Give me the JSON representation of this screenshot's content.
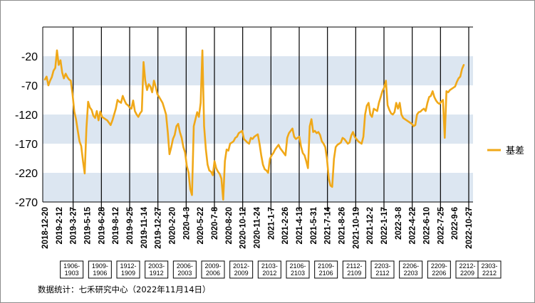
{
  "chart_data": {
    "type": "line",
    "title": "",
    "xlabel": "",
    "ylabel": "",
    "ylim": [
      -270,
      30
    ],
    "yticks": [
      -20,
      -70,
      -120,
      -170,
      -220,
      -270
    ],
    "grid": "horizontal bands",
    "legend_position": "right",
    "colors": {
      "series": "#F0A818",
      "band": "#DCE6F1",
      "vline": "#000000"
    },
    "x_ticks": [
      "2018-12-20",
      "2019-2-12",
      "2019-3-27",
      "2019-5-15",
      "2019-6-28",
      "2019-8-12",
      "2019-9-25",
      "2019-11-14",
      "2019-12-27",
      "2020-2-20",
      "2020-4-3",
      "2020-5-22",
      "2020-7-8",
      "2020-8-20",
      "2020-10-12",
      "2020-11-24",
      "2021-1-7",
      "2021-2-26",
      "2021-4-13",
      "2021-5-31",
      "2021-7-14",
      "2021-8-26",
      "2021-10-19",
      "2021-12-2",
      "2022-1-17",
      "2022-3-8",
      "2022-4-22",
      "2022-6-10",
      "2022-7-25",
      "2022-9-6",
      "2022-10-27"
    ],
    "series": [
      {
        "name": "基差",
        "y": [
          -60,
          -55,
          -70,
          -62,
          -56,
          -45,
          -40,
          -10,
          -35,
          -27,
          -48,
          -58,
          -50,
          -56,
          -60,
          -62,
          -86,
          -115,
          -128,
          -148,
          -166,
          -174,
          -200,
          -221,
          -144,
          -98,
          -108,
          -112,
          -122,
          -126,
          -114,
          -130,
          -115,
          -124,
          -126,
          -128,
          -130,
          -134,
          -138,
          -130,
          -120,
          -110,
          -95,
          -98,
          -100,
          -88,
          -96,
          -102,
          -104,
          -108,
          -110,
          -96,
          -114,
          -120,
          -124,
          -118,
          -114,
          -30,
          -62,
          -78,
          -68,
          -72,
          -82,
          -62,
          -72,
          -85,
          -90,
          -95,
          -100,
          -110,
          -120,
          -150,
          -188,
          -176,
          -162,
          -155,
          -140,
          -136,
          -150,
          -160,
          -176,
          -185,
          -208,
          -220,
          -248,
          -258,
          -140,
          -128,
          -116,
          -124,
          -100,
          -10,
          -140,
          -180,
          -206,
          -216,
          -218,
          -224,
          -200,
          -212,
          -218,
          -222,
          -230,
          -266,
          -200,
          -180,
          -182,
          -170,
          -168,
          -166,
          -160,
          -158,
          -152,
          -150,
          -148,
          -162,
          -165,
          -168,
          -170,
          -160,
          -162,
          -158,
          -156,
          -154,
          -170,
          -190,
          -206,
          -214,
          -216,
          -220,
          -196,
          -190,
          -186,
          -180,
          -176,
          -172,
          -178,
          -182,
          -186,
          -190,
          -160,
          -152,
          -148,
          -144,
          -158,
          -162,
          -160,
          -158,
          -175,
          -186,
          -190,
          -200,
          -212,
          -140,
          -128,
          -150,
          -148,
          -152,
          -150,
          -155,
          -166,
          -170,
          -176,
          -196,
          -230,
          -242,
          -244,
          -196,
          -176,
          -172,
          -170,
          -168,
          -160,
          -162,
          -166,
          -170,
          -168,
          -156,
          -150,
          -158,
          -162,
          -166,
          -168,
          -170,
          -158,
          -120,
          -105,
          -100,
          -120,
          -124,
          -110,
          -112,
          -114,
          -100,
          -90,
          -80,
          -74,
          -62,
          -104,
          -112,
          -118,
          -120,
          -116,
          -100,
          -110,
          -100,
          -120,
          -126,
          -128,
          -130,
          -132,
          -134,
          -136,
          -140,
          -138,
          -120,
          -116,
          -115,
          -112,
          -110,
          -114,
          -100,
          -90,
          -88,
          -80,
          -90,
          -96,
          -100,
          -102,
          -98,
          -95,
          -160,
          -80,
          -82,
          -78,
          -76,
          -74,
          -72,
          -64,
          -58,
          -55,
          -42,
          -35
        ]
      }
    ],
    "vlines": [
      {
        "tick_index": 2,
        "x": "2019-3-27",
        "box": [
          "1906-",
          "1903"
        ]
      },
      {
        "tick_index": 4,
        "x": "2019-6-28",
        "box": [
          "1909-",
          "1906"
        ]
      },
      {
        "tick_index": 6,
        "x": "2019-9-25",
        "box": [
          "1912-",
          "1909"
        ]
      },
      {
        "tick_index": 8,
        "x": "2019-12-27",
        "box": [
          "2003-",
          "1912"
        ]
      },
      {
        "tick_index": 10,
        "x": "2020-4-3",
        "box": [
          "2006-",
          "2003"
        ]
      },
      {
        "tick_index": 12,
        "x": "2020-7-8",
        "box": [
          "2009-",
          "2006"
        ]
      },
      {
        "tick_index": 14,
        "x": "2020-10-12",
        "box": [
          "2012-",
          "2009"
        ]
      },
      {
        "tick_index": 16,
        "x": "2021-1-7",
        "box": [
          "2103-",
          "2012"
        ]
      },
      {
        "tick_index": 18,
        "x": "2021-4-13",
        "box": [
          "2106-",
          "2103"
        ]
      },
      {
        "tick_index": 20,
        "x": "2021-7-14",
        "box": [
          "2109-",
          "2106"
        ]
      },
      {
        "tick_index": 22,
        "x": "2021-10-19",
        "box": [
          "2112-",
          "2109"
        ]
      },
      {
        "tick_index": 24,
        "x": "2022-1-17",
        "box": [
          "2203-",
          "2112"
        ]
      },
      {
        "tick_index": 26,
        "x": "2022-4-22",
        "box": [
          "2206-",
          "2203"
        ]
      },
      {
        "tick_index": 28,
        "x": "2022-7-25",
        "box": [
          "2209-",
          "2206"
        ]
      },
      {
        "tick_index": 30,
        "x": "2022-10-27",
        "box": [
          "2212-",
          "2209"
        ]
      }
    ],
    "extra_box": [
      "2303-",
      "2212"
    ]
  },
  "legend": {
    "label": "基差"
  },
  "source": "数据统计：七禾研究中心（2022年11月14日）"
}
